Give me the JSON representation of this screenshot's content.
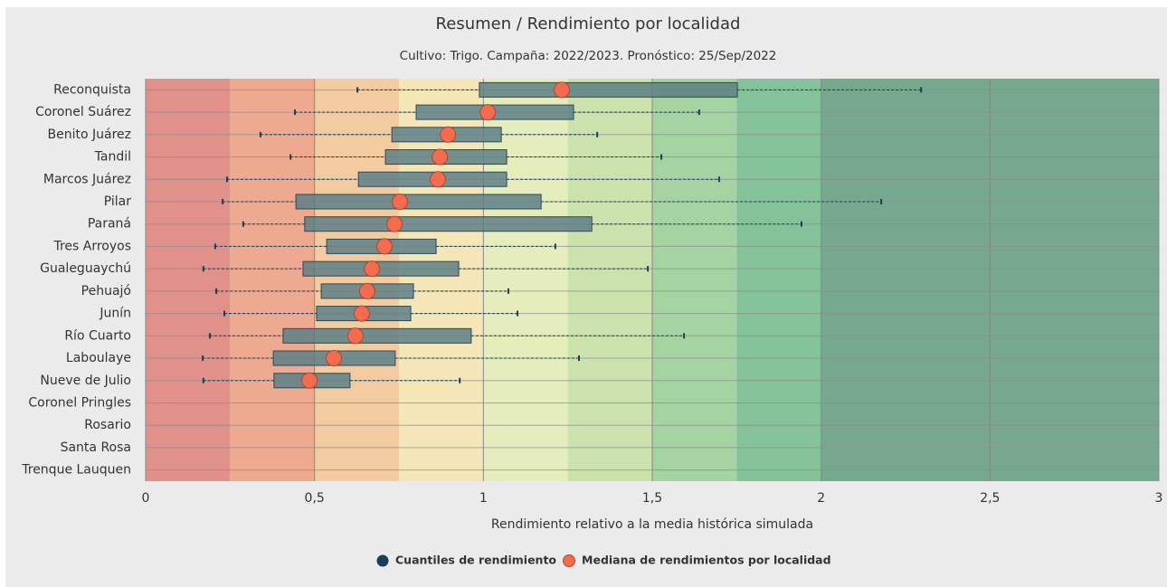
{
  "chart_data": {
    "type": "boxplot",
    "orientation": "horizontal",
    "title": "Resumen / Rendimiento por localidad",
    "subtitle": "Cultivo: Trigo. Campaña: 2022/2023. Pronóstico: 25/Sep/2022",
    "x_label": "Rendimiento relativo a la media histórica simulada",
    "categories": [
      "Reconquista",
      "Coronel Suárez",
      "Benito Juárez",
      "Tandil",
      "Marcos Juárez",
      "Pilar",
      "Paraná",
      "Tres Arroyos",
      "Gualeguaychú",
      "Pehuajó",
      "Junín",
      "Río Cuarto",
      "Laboulaye",
      "Nueve de Julio",
      "Coronel Pringles",
      "Rosario",
      "Santa Rosa",
      "Trenque Lauquen"
    ],
    "series": [
      {
        "name": "Cuantiles de rendimiento",
        "color": "#1a3d5c",
        "low": [
          0.627,
          0.442,
          0.34,
          0.429,
          0.241,
          0.228,
          0.289,
          0.206,
          0.171,
          0.209,
          0.233,
          0.19,
          0.169,
          0.171,
          null,
          null,
          null,
          null
        ],
        "q1": [
          0.988,
          0.801,
          0.729,
          0.71,
          0.63,
          0.445,
          0.471,
          0.536,
          0.466,
          0.52,
          0.506,
          0.407,
          0.378,
          0.38,
          null,
          null,
          null,
          null
        ],
        "q3": [
          1.752,
          1.267,
          1.053,
          1.069,
          1.069,
          1.171,
          1.321,
          0.86,
          0.927,
          0.793,
          0.785,
          0.964,
          0.739,
          0.605,
          null,
          null,
          null,
          null
        ],
        "high": [
          2.296,
          1.639,
          1.337,
          1.527,
          1.698,
          2.178,
          1.942,
          1.213,
          1.487,
          1.074,
          1.101,
          1.594,
          1.283,
          0.93,
          null,
          null,
          null,
          null
        ]
      },
      {
        "name": "Mediana de rendimientos por localidad",
        "color": "#f26c4f",
        "values": [
          1.232,
          1.013,
          0.895,
          0.871,
          0.865,
          0.753,
          0.737,
          0.707,
          0.67,
          0.656,
          0.64,
          0.621,
          0.557,
          0.485,
          null,
          null,
          null,
          null
        ]
      }
    ],
    "xlim": [
      0,
      3
    ],
    "xticks": [
      0,
      {
        "value": 0.5,
        "label": "0,5"
      },
      1,
      {
        "value": 1.5,
        "label": "1,5"
      },
      2,
      {
        "value": 2.5,
        "label": "2,5"
      },
      3
    ],
    "grid": true,
    "bands": [
      {
        "from": 0,
        "to": 0.25,
        "color": "#e0918a"
      },
      {
        "from": 0.25,
        "to": 0.5,
        "color": "#eeaa90"
      },
      {
        "from": 0.5,
        "to": 0.75,
        "color": "#f3cba0"
      },
      {
        "from": 0.75,
        "to": 1,
        "color": "#f5e6b8"
      },
      {
        "from": 1,
        "to": 1.25,
        "color": "#e6edbc"
      },
      {
        "from": 1.25,
        "to": 1.5,
        "color": "#cbe2ad"
      },
      {
        "from": 1.5,
        "to": 1.75,
        "color": "#a6d3a2"
      },
      {
        "from": 1.75,
        "to": 2,
        "color": "#84c39a"
      },
      {
        "from": 2,
        "to": 3,
        "color": "#76a88d"
      }
    ]
  }
}
